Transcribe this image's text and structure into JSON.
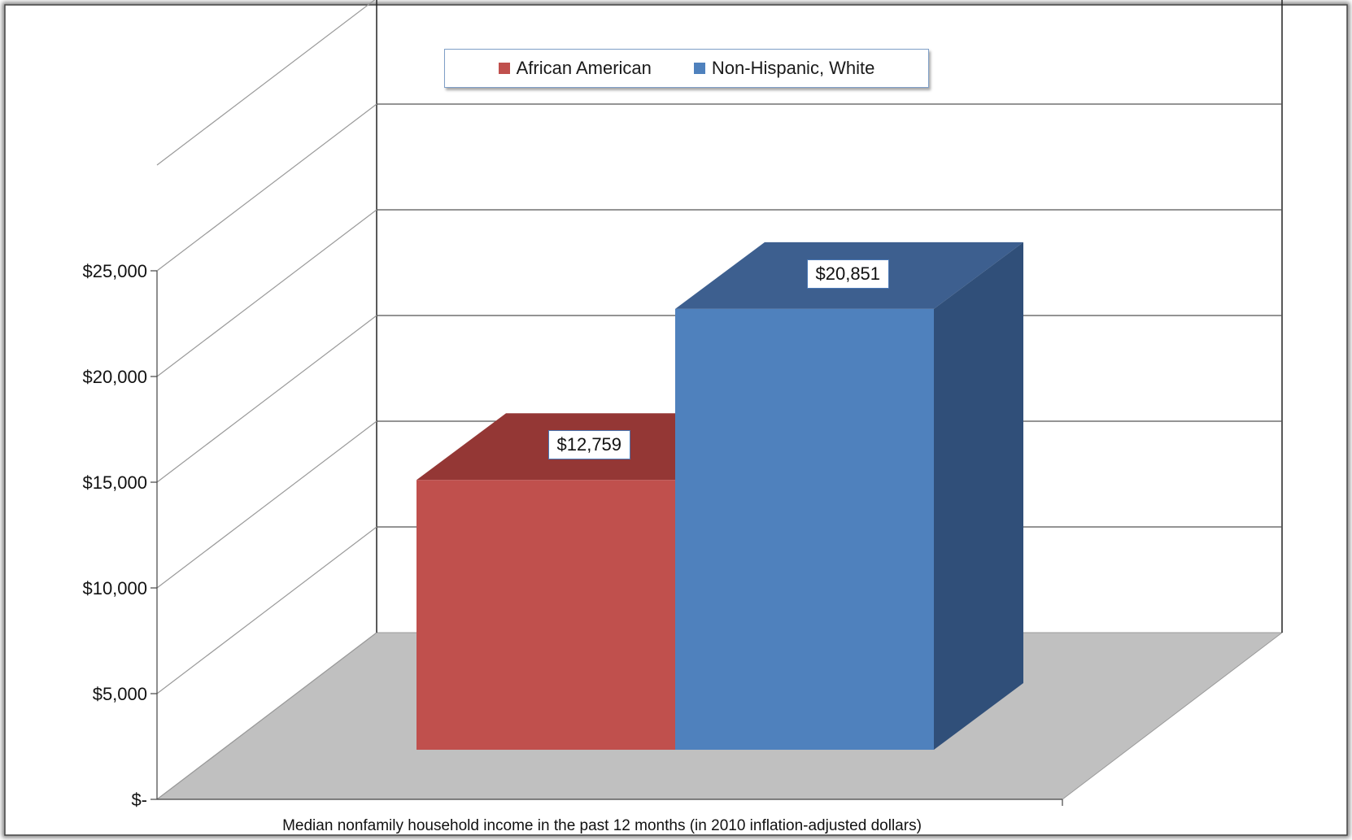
{
  "chart_data": {
    "type": "bar",
    "categories": [
      ""
    ],
    "series": [
      {
        "name": "African American",
        "values": [
          12759
        ],
        "color": "#c0504d"
      },
      {
        "name": "Non-Hispanic, White",
        "values": [
          20851
        ],
        "color": "#4f81bd"
      }
    ],
    "data_labels": [
      "$12,759",
      "$20,851"
    ],
    "y_tick_labels": [
      "$-",
      "$5,000",
      "$10,000",
      "$15,000",
      "$20,000",
      "$25,000"
    ],
    "y_ticks": [
      0,
      5000,
      10000,
      15000,
      20000,
      25000
    ],
    "xlabel": "Median nonfamily household income in the past 12 months (in 2010 inflation-adjusted dollars)",
    "ylabel": "",
    "ylim": [
      0,
      25000
    ],
    "legend_position": "top",
    "grid": true,
    "three_d": true
  }
}
